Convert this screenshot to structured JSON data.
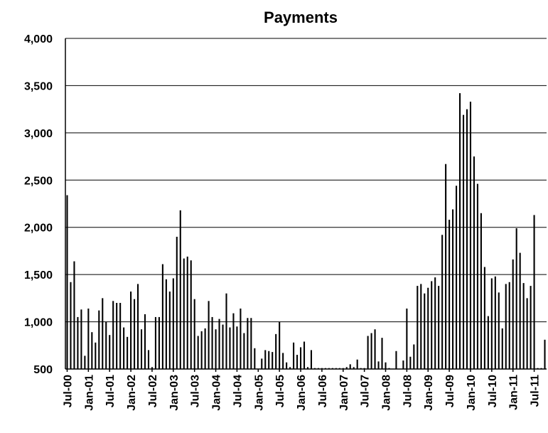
{
  "chart_data": {
    "type": "bar",
    "title": "Payments",
    "xlabel": "",
    "ylabel": "",
    "ylim": [
      500,
      4000
    ],
    "yticks": [
      500,
      1000,
      1500,
      2000,
      2500,
      3000,
      3500,
      4000
    ],
    "ytick_labels": [
      "500",
      "1,000",
      "1,500",
      "2,000",
      "2,500",
      "3,000",
      "3,500",
      "4,000"
    ],
    "grid": true,
    "xtick_labels": [
      "Jul-00",
      "Jan-01",
      "Jul-01",
      "Jan-02",
      "Jul-02",
      "Jan-03",
      "Jul-03",
      "Jan-04",
      "Jul-04",
      "Jan-05",
      "Jul-05",
      "Jan-06",
      "Jul-06",
      "Jan-07",
      "Jul-07",
      "Jan-08",
      "Jul-08",
      "Jan-09",
      "Jul-09",
      "Jan-10",
      "Jul-10",
      "Jan-11",
      "Jul-11"
    ],
    "x_start": "Jul-00",
    "x_end": "Sep-11",
    "values": [
      2340,
      1420,
      1640,
      1050,
      1130,
      640,
      1140,
      890,
      780,
      1120,
      1250,
      1000,
      860,
      1220,
      1200,
      1200,
      940,
      840,
      1320,
      1240,
      1400,
      920,
      1080,
      700,
      520,
      1050,
      1050,
      1610,
      1450,
      1320,
      1460,
      1900,
      2180,
      1670,
      1690,
      1650,
      1240,
      850,
      900,
      930,
      1220,
      1050,
      920,
      1030,
      970,
      1300,
      940,
      1090,
      950,
      1140,
      880,
      1040,
      1040,
      720,
      500,
      610,
      700,
      690,
      680,
      870,
      1000,
      670,
      570,
      520,
      780,
      650,
      730,
      790,
      520,
      700,
      510,
      510,
      510,
      510,
      510,
      510,
      510,
      510,
      510,
      520,
      550,
      520,
      600,
      510,
      510,
      850,
      880,
      920,
      580,
      830,
      570,
      510,
      500,
      690,
      500,
      590,
      1140,
      630,
      760,
      1380,
      1400,
      1300,
      1360,
      1430,
      1470,
      1380,
      1920,
      2670,
      2080,
      2190,
      2440,
      3420,
      3190,
      3250,
      3330,
      2750,
      2460,
      2150,
      1580,
      1060,
      1460,
      1480,
      1310,
      930,
      1400,
      1420,
      1660,
      1990,
      1730,
      1410,
      1250,
      1380,
      2130,
      510,
      510,
      810
    ]
  }
}
